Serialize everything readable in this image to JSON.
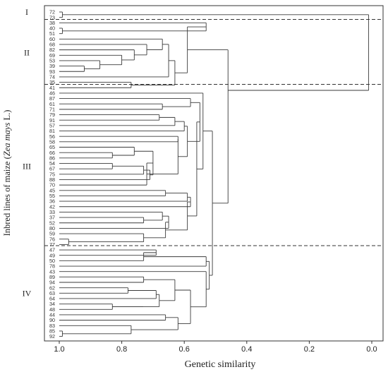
{
  "figure": {
    "y_axis_title_prefix": "Inbred lines of maize (",
    "y_axis_title_italic": "Zea mays",
    "y_axis_title_suffix": " L.)",
    "x_axis_title": "Genetic similarity",
    "x_ticks": [
      "1.0",
      "0.8",
      "0.6",
      "0.4",
      "0.2",
      "0.0"
    ],
    "x_tick_values": [
      1.0,
      0.8,
      0.6,
      0.4,
      0.2,
      0.0
    ],
    "x_range": [
      1.0,
      0.0
    ],
    "orientation": "horizontal, similarity decreasing to the right"
  },
  "groups": [
    {
      "label": "I",
      "leaves": [
        "72",
        "73"
      ]
    },
    {
      "label": "II",
      "leaves": [
        "38",
        "40",
        "51",
        "60",
        "68",
        "82",
        "69",
        "53",
        "39",
        "93",
        "74",
        "35"
      ]
    },
    {
      "label": "III",
      "leaves": [
        "41",
        "46",
        "87",
        "61",
        "71",
        "79",
        "91",
        "57",
        "81",
        "56",
        "58",
        "65",
        "66",
        "86",
        "54",
        "67",
        "75",
        "88",
        "70",
        "45",
        "55",
        "36",
        "42",
        "33",
        "37",
        "52",
        "80",
        "59",
        "76",
        "77"
      ]
    },
    {
      "label": "IV",
      "leaves": [
        "47",
        "49",
        "50",
        "78",
        "43",
        "89",
        "94",
        "62",
        "63",
        "64",
        "34",
        "48",
        "44",
        "90",
        "83",
        "85",
        "92"
      ]
    }
  ]
}
